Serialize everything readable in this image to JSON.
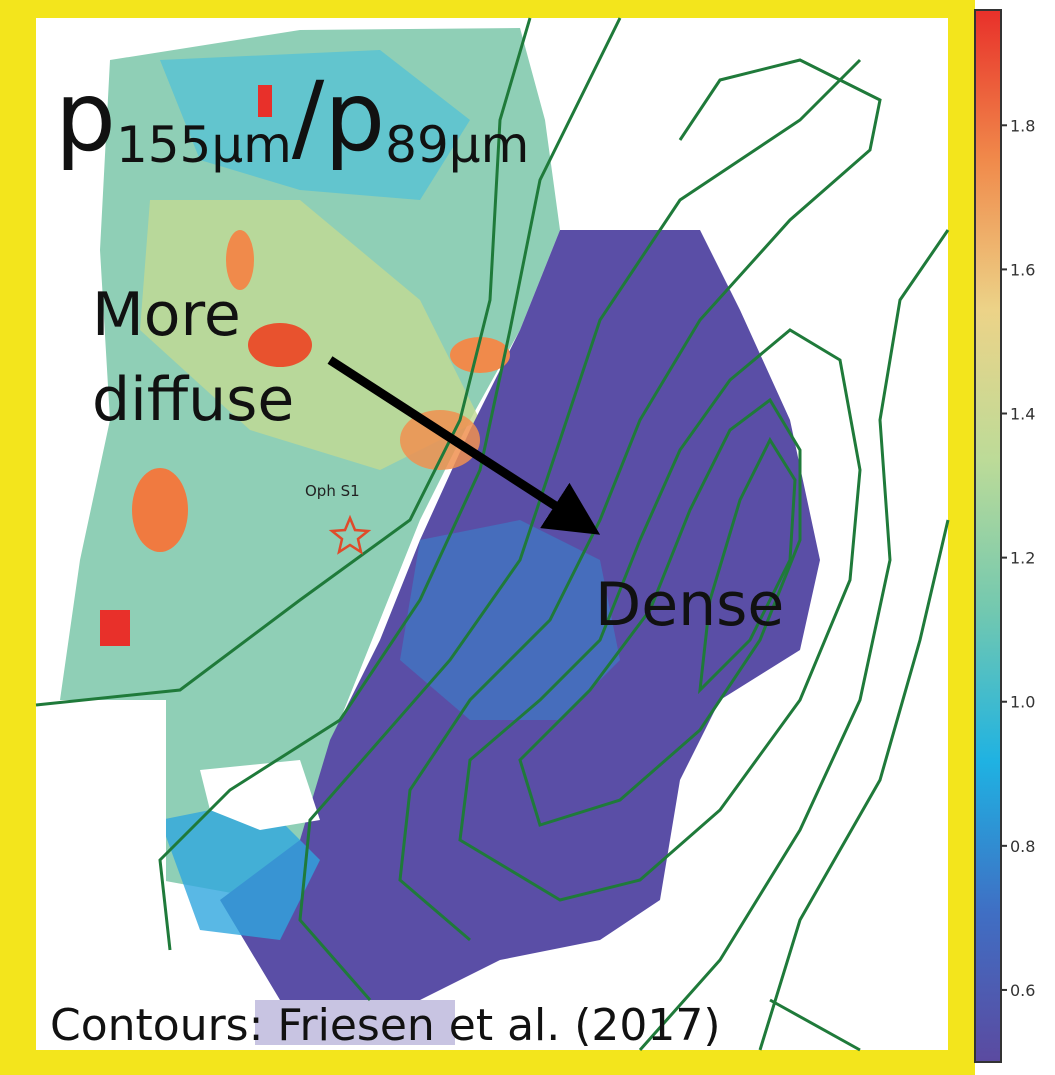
{
  "chart_data": {
    "type": "heatmap",
    "title": [
      "p",
      "155μm",
      "/p",
      "89μm"
    ],
    "annotations": [
      "More",
      "diffuse",
      "Dense",
      "Oph S1"
    ],
    "caption": "Contours: Friesen et al. (2017)",
    "colorbar": {
      "lim": [
        0.5,
        1.96
      ],
      "ticks": [
        0.6,
        0.8,
        {
          "value": 1,
          "label": "1.0"
        },
        1.2,
        1.4,
        1.6,
        1.8
      ],
      "colors": [
        "#5b4aa0",
        "#3f6fc4",
        "#1fb2e2",
        "#72c8b0",
        "#bcdb98",
        "#ecd388",
        "#f08a4b",
        "#e8302a"
      ]
    },
    "contour_color": "#1f7a3a"
  }
}
